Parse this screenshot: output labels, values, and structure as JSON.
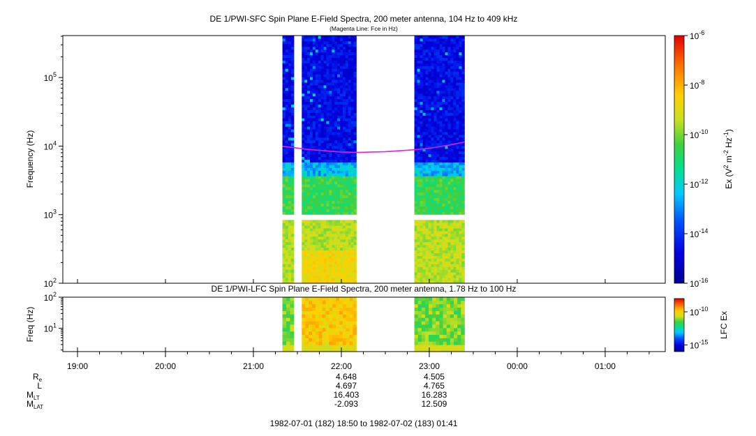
{
  "chart_data": [
    {
      "type": "heatmap",
      "title": "DE 1/PWI-SFC  Spin Plane E-Field Spectra, 200 meter antenna, 104 Hz to 409 kHz",
      "subtitle": "(Magenta Line: Fce in Hz)",
      "ylabel": "Frequency (Hz)",
      "yscale": "log",
      "ylim": [
        100,
        409000
      ],
      "yticks": [
        {
          "value": 100,
          "base": "10",
          "exp": "2"
        },
        {
          "value": 1000,
          "base": "10",
          "exp": "3"
        },
        {
          "value": 10000,
          "base": "10",
          "exp": "4"
        },
        {
          "value": 100000,
          "base": "10",
          "exp": "5"
        }
      ],
      "colorbar": {
        "label_main": "Ex (V",
        "label_sup1": "2",
        "label_mid": " m",
        "label_sup2": "-2",
        "label_mid2": " Hz",
        "label_sup3": "-1",
        "label_end": ")",
        "scale": "log",
        "range": [
          1e-16,
          1e-06
        ],
        "ticks": [
          {
            "value": 1e-06,
            "base": "10",
            "exp": "-6"
          },
          {
            "value": 1e-08,
            "base": "10",
            "exp": "-8"
          },
          {
            "value": 1e-10,
            "base": "10",
            "exp": "-10"
          },
          {
            "value": 1e-12,
            "base": "10",
            "exp": "-12"
          },
          {
            "value": 1e-14,
            "base": "10",
            "exp": "-14"
          },
          {
            "value": 1e-16,
            "base": "10",
            "exp": "-16"
          }
        ]
      },
      "data_intervals_hours": [
        [
          21.33,
          21.46
        ],
        [
          21.55,
          22.17
        ],
        [
          22.83,
          23.4
        ]
      ],
      "gap_band_hz": [
        870,
        1010
      ],
      "fce_line": {
        "color": "#e020e0",
        "points": [
          [
            21.33,
            9900
          ],
          [
            21.46,
            9500
          ],
          [
            21.6,
            9000
          ],
          [
            21.8,
            8600
          ],
          [
            22.0,
            8200
          ],
          [
            22.2,
            8100
          ],
          [
            22.5,
            8300
          ],
          [
            22.8,
            8800
          ],
          [
            23.0,
            9300
          ],
          [
            23.2,
            10200
          ],
          [
            23.4,
            11500
          ]
        ]
      }
    },
    {
      "type": "heatmap",
      "title": "DE 1/PWI-LFC  Spin Plane E-Field Spectra, 200 meter antenna, 1.78 Hz to 100 Hz",
      "ylabel": "Freq (Hz)",
      "yscale": "log",
      "ylim": [
        1.78,
        100
      ],
      "yticks": [
        {
          "value": 10,
          "base": "10",
          "exp": "1"
        },
        {
          "value": 100,
          "base": "10",
          "exp": "2"
        }
      ],
      "colorbar": {
        "label": "LFC Ex",
        "scale": "log",
        "range": [
          1e-16,
          1e-08
        ],
        "ticks": [
          {
            "value": 1e-10,
            "base": "10",
            "exp": "-10"
          },
          {
            "value": 1e-15,
            "base": "10",
            "exp": "-15"
          }
        ]
      },
      "data_intervals_hours": [
        [
          21.33,
          21.46
        ],
        [
          21.55,
          22.17
        ],
        [
          22.83,
          23.4
        ]
      ]
    }
  ],
  "time_axis": {
    "range_hours": [
      18.833,
      25.683
    ],
    "ticks": [
      {
        "value": 19,
        "label": "19:00"
      },
      {
        "value": 20,
        "label": "20:00"
      },
      {
        "value": 21,
        "label": "21:00"
      },
      {
        "value": 22,
        "label": "22:00"
      },
      {
        "value": 23,
        "label": "23:00"
      },
      {
        "value": 24,
        "label": "00:00"
      },
      {
        "value": 25,
        "label": "01:00"
      }
    ]
  },
  "ephemeris": {
    "rows": [
      {
        "label": "R",
        "sub": "e",
        "values": [
          "4.648",
          "4.505"
        ]
      },
      {
        "label": "L",
        "sub": "",
        "values": [
          "4.697",
          "4.765"
        ]
      },
      {
        "label": "M",
        "sub": "LT",
        "values": [
          "16.403",
          "16.283"
        ]
      },
      {
        "label": "M",
        "sub": "LAT",
        "values": [
          "-2.093",
          "12.509"
        ]
      }
    ],
    "at_hours": [
      22,
      23
    ]
  },
  "time_range_text": "1982-07-01 (182) 18:50 to 1982-07-02 (183) 01:41"
}
